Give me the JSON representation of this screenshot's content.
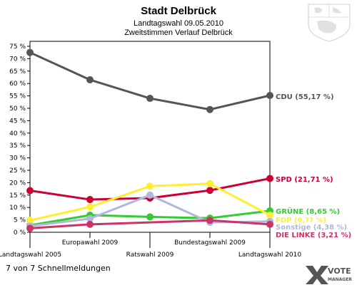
{
  "chart_data": {
    "type": "line",
    "title": "Stadt Delbrück",
    "subtitles": [
      "Landtagswahl 09.05.2010",
      "Zweitstimmen Verlauf Delbrück"
    ],
    "categories": [
      "Landtagswahl 2005",
      "Europawahl 2009",
      "Ratswahl 2009",
      "Bundestagswahl 2009",
      "Landtagswahl 2010"
    ],
    "y_ticks": [
      "0 %",
      "5 %",
      "10 %",
      "15 %",
      "20 %",
      "25 %",
      "30 %",
      "35 %",
      "40 %",
      "45 %",
      "50 %",
      "55 %",
      "60 %",
      "65 %",
      "70 %",
      "75 %"
    ],
    "ylim": [
      0,
      77
    ],
    "grid": false,
    "series": [
      {
        "name": "CDU",
        "label": "CDU (55,17 %)",
        "color": "#555555",
        "values": [
          72.5,
          61.5,
          54.0,
          49.5,
          55.17
        ]
      },
      {
        "name": "SPD",
        "label": "SPD (21,71 %)",
        "color": "#cc0033",
        "values": [
          16.8,
          13.2,
          13.8,
          16.9,
          21.71
        ]
      },
      {
        "name": "GRÜNE",
        "label": "GRÜNE (8,65 %)",
        "color": "#33cc33",
        "values": [
          2.8,
          6.9,
          6.2,
          5.7,
          8.65
        ]
      },
      {
        "name": "FDP",
        "label": "FDP (6,?? %)",
        "color": "#ffee33",
        "values": [
          4.8,
          10.2,
          18.6,
          19.6,
          6.9
        ]
      },
      {
        "name": "Sonstige",
        "label": "Sonstige (4,38 %)",
        "color": "#b0b8e0",
        "values": [
          2.5,
          5.5,
          15.0,
          4.0,
          4.38
        ]
      },
      {
        "name": "DIE LINKE",
        "label": "DIE LINKE (3,21 %)",
        "color": "#cc3366",
        "values": [
          1.6,
          3.2,
          null,
          4.8,
          3.21
        ]
      }
    ]
  },
  "footer": {
    "count_text": "7 von 7 Schnellmeldungen",
    "brand_top": "VOTE",
    "brand_bottom": "MANAGER"
  }
}
